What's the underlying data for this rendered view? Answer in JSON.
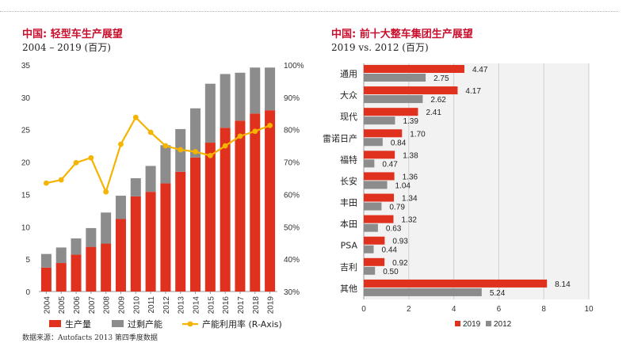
{
  "chart_data": [
    {
      "type": "bar",
      "title": "中国: 轻型车生产展望",
      "subtitle": "2004 – 2019 (百万)",
      "stacked": true,
      "categories": [
        "2004",
        "2005",
        "2006",
        "2007",
        "2008",
        "2009",
        "2010",
        "2011",
        "2012",
        "2013",
        "2014",
        "2015",
        "2016",
        "2017",
        "2018",
        "2019"
      ],
      "series": [
        {
          "name": "生产量",
          "color": "#e0301e",
          "values": [
            3.7,
            4.4,
            5.7,
            6.9,
            7.4,
            11.2,
            14.7,
            15.4,
            16.7,
            18.5,
            20.7,
            23.0,
            25.3,
            26.4,
            27.5,
            28.0
          ]
        },
        {
          "name": "过剩产能",
          "color": "#8c8c8c",
          "values": [
            2.1,
            2.4,
            2.5,
            2.9,
            4.8,
            3.6,
            2.8,
            4.0,
            5.9,
            6.6,
            7.6,
            9.1,
            8.3,
            7.4,
            7.1,
            6.6
          ]
        },
        {
          "name": "产能利用率 (R-Axis)",
          "color": "#f4b400",
          "axis": "right",
          "type": "line",
          "values": [
            63.5,
            64.5,
            69.8,
            71.3,
            60.8,
            75.5,
            83.8,
            79.2,
            75.0,
            73.8,
            73.2,
            72.0,
            75.0,
            78.0,
            79.5,
            81.3
          ]
        }
      ],
      "ylim": [
        0,
        35
      ],
      "yticks": [
        "0",
        "5",
        "10",
        "15",
        "20",
        "25",
        "30",
        "35"
      ],
      "y2lim": [
        30,
        100
      ],
      "y2ticks": [
        "30%",
        "40%",
        "50%",
        "60%",
        "70%",
        "80%",
        "90%",
        "100%"
      ],
      "grid": false,
      "legend": "bottom"
    },
    {
      "type": "bar",
      "orientation": "horizontal",
      "title": "中国: 前十大整车集团生产展望",
      "subtitle": "2019 vs. 2012 (百万)",
      "categories": [
        "通用",
        "大众",
        "现代",
        "雷诺日产",
        "福特",
        "长安",
        "丰田",
        "本田",
        "PSA",
        "吉利",
        "其他"
      ],
      "series": [
        {
          "name": "2019",
          "color": "#e0301e",
          "values": [
            4.47,
            4.17,
            2.41,
            1.7,
            1.38,
            1.36,
            1.34,
            1.32,
            0.93,
            0.92,
            8.14
          ]
        },
        {
          "name": "2012",
          "color": "#8c8c8c",
          "values": [
            2.75,
            2.62,
            1.39,
            0.84,
            0.47,
            1.04,
            0.79,
            0.63,
            0.44,
            0.5,
            5.24
          ]
        }
      ],
      "value_labels": {
        "2019": [
          "4.47",
          "4.17",
          "2.41",
          "1.70",
          "1.38",
          "1.36",
          "1.34",
          "1.32",
          "0.93",
          "0.92",
          "8.14"
        ],
        "2012": [
          "2.75",
          "2.62",
          "1.39",
          "0.84",
          "0.47",
          "1.04",
          "0.79",
          "0.63",
          "0.44",
          "0.50",
          "5.24"
        ]
      },
      "xlim": [
        0,
        10
      ],
      "xticks": [
        "0",
        "2",
        "4",
        "6",
        "8",
        "10"
      ],
      "grid": true,
      "legend": "bottom"
    }
  ],
  "footer": {
    "source": "数据来源：Autofacts 2013 第四季度数据"
  }
}
